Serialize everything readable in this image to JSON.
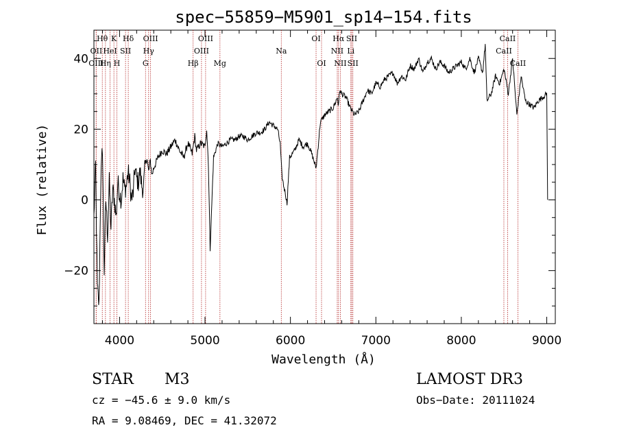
{
  "chart_data": {
    "type": "line",
    "title": "spec−55859−M5901_sp14−154.fits",
    "xlabel": "Wavelength (Å)",
    "ylabel": "Flux (relative)",
    "xlim": [
      3700,
      9100
    ],
    "ylim": [
      -35,
      48
    ],
    "xticks": [
      4000,
      5000,
      6000,
      7000,
      8000,
      9000
    ],
    "xtick_labels": [
      "4000",
      "5000",
      "6000",
      "7000",
      "8000",
      "9000"
    ],
    "yticks": [
      -20,
      0,
      20,
      40
    ],
    "ytick_labels": [
      "−20",
      "0",
      "20",
      "40"
    ],
    "spectrum": {
      "x": [
        3700,
        3720,
        3740,
        3760,
        3780,
        3800,
        3820,
        3840,
        3860,
        3880,
        3900,
        3920,
        3940,
        3960,
        3980,
        4000,
        4020,
        4040,
        4060,
        4080,
        4100,
        4120,
        4140,
        4160,
        4180,
        4200,
        4220,
        4240,
        4260,
        4280,
        4300,
        4320,
        4340,
        4360,
        4380,
        4400,
        4450,
        4500,
        4550,
        4600,
        4650,
        4700,
        4750,
        4800,
        4850,
        4880,
        4900,
        4950,
        5000,
        5020,
        5040,
        5060,
        5100,
        5150,
        5200,
        5250,
        5300,
        5350,
        5400,
        5450,
        5500,
        5550,
        5600,
        5650,
        5700,
        5750,
        5800,
        5850,
        5880,
        5900,
        5920,
        5940,
        5960,
        5990,
        6050,
        6100,
        6150,
        6200,
        6250,
        6300,
        6320,
        6350,
        6400,
        6450,
        6500,
        6550,
        6560,
        6580,
        6600,
        6650,
        6700,
        6750,
        6800,
        6850,
        6900,
        6950,
        7000,
        7050,
        7100,
        7150,
        7200,
        7250,
        7300,
        7350,
        7400,
        7450,
        7500,
        7550,
        7600,
        7650,
        7700,
        7750,
        7800,
        7850,
        7900,
        7950,
        8000,
        8050,
        8100,
        8150,
        8200,
        8250,
        8280,
        8300,
        8350,
        8400,
        8450,
        8500,
        8550,
        8600,
        8650,
        8700,
        8750,
        8800,
        8850,
        8900,
        8950,
        9000,
        9010
      ],
      "y": [
        -5,
        10,
        -25,
        -30,
        5,
        15,
        -20,
        0,
        -10,
        5,
        -8,
        3,
        0,
        -5,
        5,
        2,
        0,
        6,
        3,
        4,
        8,
        5,
        0,
        2,
        9,
        6,
        5,
        8,
        4,
        3,
        10,
        12,
        8,
        11,
        7,
        9,
        12,
        14,
        13,
        15,
        17,
        14,
        12,
        16,
        13,
        18,
        14,
        16,
        15,
        20,
        10,
        -14,
        12,
        16,
        15,
        16,
        17,
        17,
        18,
        18,
        17,
        18,
        19,
        19,
        20,
        22,
        21,
        20,
        16,
        7,
        4,
        2,
        -1,
        12,
        14,
        17,
        15,
        16,
        13,
        9,
        14,
        22,
        24,
        25,
        26,
        29,
        27,
        31,
        30,
        29,
        26,
        24,
        25,
        28,
        31,
        30,
        33,
        32,
        34,
        35,
        36,
        33,
        35,
        34,
        38,
        37,
        40,
        36,
        39,
        40,
        37,
        39,
        38,
        36,
        37,
        38,
        39,
        37,
        40,
        36,
        40,
        36,
        44,
        28,
        30,
        35,
        33,
        37,
        30,
        40,
        24,
        35,
        28,
        27,
        26,
        28,
        29,
        30,
        0
      ]
    },
    "lines": [
      {
        "label": "Hθ",
        "wave": 3798,
        "row": 0
      },
      {
        "label": "OII",
        "wave": 3727,
        "row": 1
      },
      {
        "label": "HeI",
        "wave": 3889,
        "row": 1
      },
      {
        "label": "OIII",
        "wave": 3726,
        "row": 2
      },
      {
        "label": "Hη",
        "wave": 3835,
        "row": 2
      },
      {
        "label": "K",
        "wave": 3934,
        "row": 0
      },
      {
        "label": "H",
        "wave": 3969,
        "row": 2
      },
      {
        "label": "SII",
        "wave": 4070,
        "row": 1
      },
      {
        "label": "Hδ",
        "wave": 4102,
        "row": 0
      },
      {
        "label": "OIII",
        "wave": 4363,
        "row": 0
      },
      {
        "label": "Hγ",
        "wave": 4340,
        "row": 1
      },
      {
        "label": "G",
        "wave": 4304,
        "row": 2
      },
      {
        "label": "Hβ",
        "wave": 4861,
        "row": 2
      },
      {
        "label": "OIII",
        "wave": 5007,
        "row": 0
      },
      {
        "label": "OIII",
        "wave": 4959,
        "row": 1
      },
      {
        "label": "Mg",
        "wave": 5175,
        "row": 2
      },
      {
        "label": "Na",
        "wave": 5893,
        "row": 1
      },
      {
        "label": "OI",
        "wave": 6300,
        "row": 0
      },
      {
        "label": "OI",
        "wave": 6364,
        "row": 2
      },
      {
        "label": "Hα",
        "wave": 6563,
        "row": 0
      },
      {
        "label": "NII",
        "wave": 6548,
        "row": 1
      },
      {
        "label": "NII",
        "wave": 6584,
        "row": 2
      },
      {
        "label": "SII",
        "wave": 6717,
        "row": 0
      },
      {
        "label": "Li",
        "wave": 6707,
        "row": 1
      },
      {
        "label": "SII",
        "wave": 6731,
        "row": 2
      },
      {
        "label": "CaII",
        "wave": 8542,
        "row": 0
      },
      {
        "label": "CaII",
        "wave": 8498,
        "row": 1
      },
      {
        "label": "CaII",
        "wave": 8662,
        "row": 2
      }
    ]
  },
  "info": {
    "class": "STAR",
    "subclass": "M3",
    "survey": "LAMOST DR3",
    "cz": "cz = −45.6 ± 9.0 km/s",
    "obs_date": "Obs−Date: 20111024",
    "radec": "RA =   9.08469, DEC =  41.32072"
  },
  "colors": {
    "line_marker": "#b22222",
    "spectrum": "#000000"
  }
}
